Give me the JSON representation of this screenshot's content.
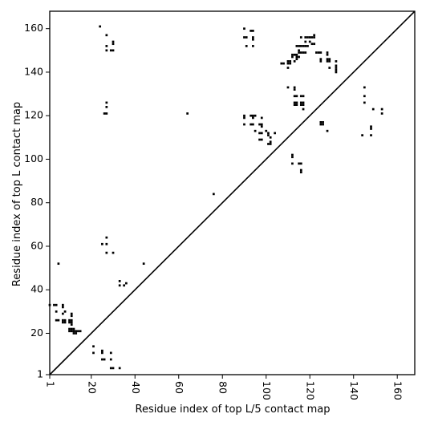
{
  "chart_data": {
    "type": "scatter",
    "title": "",
    "xlabel": "Residue index of top L/5 contact map",
    "ylabel": "Residue index of top L contact map",
    "xlim": [
      1,
      168
    ],
    "ylim": [
      1,
      168
    ],
    "x_ticks": [
      1,
      20,
      40,
      60,
      80,
      100,
      120,
      140,
      160
    ],
    "x_tick_labels": [
      "1",
      "20",
      "40",
      "60",
      "80",
      "100",
      "120",
      "140",
      "160"
    ],
    "y_ticks": [
      1,
      20,
      40,
      60,
      80,
      100,
      120,
      140,
      160
    ],
    "y_tick_labels": [
      "1",
      "20",
      "40",
      "60",
      "80",
      "100",
      "120",
      "140",
      "160"
    ],
    "x_tick_label_rotation": -90,
    "diagonal_line": true,
    "grid": false,
    "marker": "square",
    "marker_color": "#000000",
    "series": [
      {
        "region": "upper-left",
        "points": [
          [
            24,
            161
          ],
          [
            27,
            157
          ],
          [
            30,
            154
          ],
          [
            30,
            153
          ],
          [
            27,
            152
          ],
          [
            27,
            150
          ],
          [
            29,
            150
          ],
          [
            30,
            150
          ],
          [
            27,
            126
          ],
          [
            27,
            124
          ],
          [
            26,
            121
          ],
          [
            27,
            121
          ],
          [
            64,
            121
          ],
          [
            76,
            84
          ],
          [
            90,
            160
          ],
          [
            93,
            159
          ],
          [
            94,
            159
          ],
          [
            90,
            156
          ],
          [
            91,
            156
          ],
          [
            94,
            156
          ],
          [
            94,
            155
          ],
          [
            91,
            152
          ],
          [
            94,
            152
          ],
          [
            90,
            120
          ],
          [
            90,
            119
          ],
          [
            93,
            120
          ],
          [
            94,
            120
          ],
          [
            95,
            120
          ],
          [
            94,
            119
          ],
          [
            90,
            116
          ],
          [
            93,
            116
          ],
          [
            94,
            116
          ],
          [
            98,
            119
          ],
          [
            97,
            116
          ],
          [
            98,
            116
          ],
          [
            98,
            115
          ],
          [
            95,
            113
          ],
          [
            97,
            112
          ],
          [
            98,
            112
          ],
          [
            100,
            113
          ],
          [
            101,
            112
          ],
          [
            101,
            111
          ],
          [
            104,
            112
          ],
          [
            102,
            110
          ],
          [
            97,
            109
          ],
          [
            98,
            109
          ],
          [
            102,
            108
          ],
          [
            101,
            107
          ],
          [
            102,
            107
          ],
          [
            107,
            144
          ],
          [
            108,
            144
          ],
          [
            110,
            145
          ],
          [
            111,
            145
          ],
          [
            110,
            144
          ],
          [
            111,
            144
          ],
          [
            110,
            142
          ],
          [
            112,
            148
          ],
          [
            113,
            148
          ],
          [
            112,
            147
          ],
          [
            114,
            148
          ],
          [
            114,
            147
          ],
          [
            115,
            147
          ],
          [
            114,
            146
          ],
          [
            113,
            145
          ],
          [
            114,
            152
          ],
          [
            115,
            152
          ],
          [
            116,
            152
          ],
          [
            117,
            152
          ],
          [
            118,
            152
          ],
          [
            119,
            152
          ],
          [
            115,
            150
          ],
          [
            115,
            149
          ],
          [
            116,
            149
          ],
          [
            117,
            149
          ],
          [
            118,
            149
          ],
          [
            121,
            153
          ],
          [
            122,
            153
          ],
          [
            116,
            156
          ],
          [
            118,
            156
          ],
          [
            119,
            156
          ],
          [
            120,
            156
          ],
          [
            121,
            156
          ],
          [
            122,
            157
          ],
          [
            122,
            156
          ],
          [
            118,
            154
          ],
          [
            120,
            154
          ],
          [
            123,
            149
          ],
          [
            124,
            149
          ],
          [
            125,
            149
          ],
          [
            125,
            146
          ],
          [
            125,
            145
          ],
          [
            128,
            149
          ],
          [
            128,
            148
          ],
          [
            128,
            146
          ],
          [
            129,
            146
          ],
          [
            128,
            145
          ],
          [
            129,
            145
          ],
          [
            129,
            142
          ],
          [
            132,
            145
          ],
          [
            132,
            143
          ],
          [
            132,
            142
          ],
          [
            132,
            141
          ],
          [
            132,
            140
          ],
          [
            110,
            133
          ],
          [
            113,
            133
          ],
          [
            113,
            132
          ],
          [
            113,
            129
          ],
          [
            114,
            129
          ],
          [
            116,
            129
          ],
          [
            117,
            129
          ],
          [
            113,
            126
          ],
          [
            114,
            126
          ],
          [
            113,
            125
          ],
          [
            114,
            125
          ],
          [
            116,
            126
          ],
          [
            117,
            126
          ],
          [
            116,
            125
          ],
          [
            117,
            125
          ],
          [
            117,
            123
          ],
          [
            125,
            117
          ],
          [
            126,
            117
          ],
          [
            125,
            116
          ],
          [
            126,
            116
          ],
          [
            128,
            113
          ],
          [
            112,
            102
          ],
          [
            112,
            101
          ],
          [
            112,
            98
          ],
          [
            115,
            98
          ],
          [
            116,
            98
          ],
          [
            116,
            95
          ],
          [
            116,
            94
          ],
          [
            145,
            133
          ],
          [
            145,
            129
          ],
          [
            145,
            126
          ],
          [
            144,
            111
          ],
          [
            148,
            115
          ],
          [
            148,
            114
          ],
          [
            148,
            111
          ],
          [
            149,
            123
          ],
          [
            153,
            123
          ],
          [
            153,
            121
          ]
        ]
      },
      {
        "region": "lower-right",
        "points": [
          [
            1,
            33
          ],
          [
            3,
            33
          ],
          [
            4,
            33
          ],
          [
            7,
            33
          ],
          [
            7,
            32
          ],
          [
            4,
            30
          ],
          [
            7,
            29
          ],
          [
            8,
            30
          ],
          [
            11,
            29
          ],
          [
            11,
            28
          ],
          [
            4,
            26
          ],
          [
            5,
            26
          ],
          [
            7,
            26
          ],
          [
            7,
            25
          ],
          [
            8,
            26
          ],
          [
            8,
            25
          ],
          [
            10,
            26
          ],
          [
            11,
            26
          ],
          [
            10,
            25
          ],
          [
            11,
            25
          ],
          [
            11,
            24
          ],
          [
            10,
            22
          ],
          [
            11,
            22
          ],
          [
            12,
            22
          ],
          [
            10,
            21
          ],
          [
            11,
            21
          ],
          [
            12,
            21
          ],
          [
            13,
            21
          ],
          [
            14,
            21
          ],
          [
            15,
            21
          ],
          [
            12,
            20
          ],
          [
            13,
            20
          ],
          [
            5,
            52
          ],
          [
            25,
            61
          ],
          [
            27,
            64
          ],
          [
            27,
            61
          ],
          [
            27,
            57
          ],
          [
            30,
            57
          ],
          [
            44,
            52
          ],
          [
            33,
            44
          ],
          [
            33,
            42
          ],
          [
            35,
            42
          ],
          [
            36,
            43
          ],
          [
            21,
            14
          ],
          [
            21,
            11
          ],
          [
            25,
            12
          ],
          [
            25,
            11
          ],
          [
            25,
            8
          ],
          [
            26,
            8
          ],
          [
            29,
            11
          ],
          [
            29,
            8
          ],
          [
            29,
            4
          ],
          [
            30,
            4
          ],
          [
            33,
            4
          ]
        ]
      }
    ]
  }
}
